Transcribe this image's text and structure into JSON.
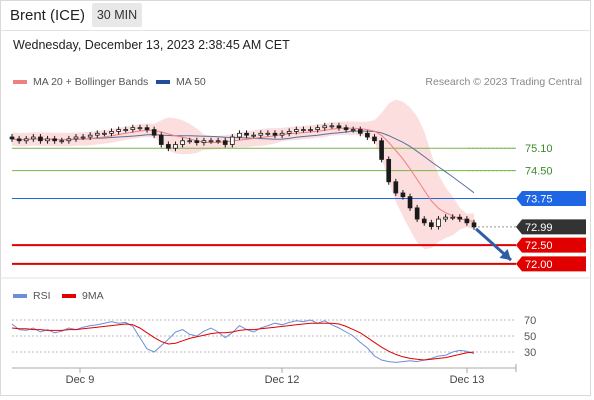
{
  "header": {
    "instrument": "Brent (ICE)",
    "timeframe": "30 MIN",
    "datetime": "Wednesday, December 13, 2023 2:38:45 AM CET"
  },
  "legend": {
    "items": [
      {
        "label": "MA 20 + Bollinger Bands",
        "color": "#f08080"
      },
      {
        "label": "MA 50",
        "color": "#1f4e9c"
      }
    ],
    "credit": "Research © 2023 Trading Central"
  },
  "rsi_legend": {
    "items": [
      {
        "label": "RSI",
        "color": "#6b8ed6"
      },
      {
        "label": "9MA",
        "color": "#e00000"
      }
    ]
  },
  "colors": {
    "price": "#1a1a1a",
    "bollinger_fill": "#fbd8d8",
    "ma20": "#f08080",
    "ma50": "#5b6f9e",
    "level_green": "#7ab648",
    "level_blue": "#1f66e5",
    "level_red": "#e00000",
    "current_tag": "#333333",
    "arrow": "#2e5ea8",
    "rsi": "#6b8ed6",
    "rsi_ma": "#e00000"
  },
  "chart_data": [
    {
      "type": "line",
      "title": "",
      "x_ticks": [
        "Dec 9",
        "Dec 12",
        "Dec 13"
      ],
      "ylim": [
        71.7,
        76.5
      ],
      "series": [
        {
          "name": "Price",
          "values": [
            75.35,
            75.3,
            75.35,
            75.4,
            75.3,
            75.35,
            75.3,
            75.3,
            75.35,
            75.4,
            75.4,
            75.45,
            75.5,
            75.5,
            75.55,
            75.6,
            75.6,
            75.65,
            75.65,
            75.6,
            75.45,
            75.2,
            75.1,
            75.2,
            75.3,
            75.3,
            75.25,
            75.3,
            75.3,
            75.3,
            75.2,
            75.4,
            75.5,
            75.45,
            75.45,
            75.5,
            75.5,
            75.45,
            75.5,
            75.55,
            75.6,
            75.6,
            75.6,
            75.65,
            75.7,
            75.7,
            75.65,
            75.6,
            75.6,
            75.5,
            75.4,
            75.3,
            74.8,
            74.2,
            73.9,
            73.8,
            73.5,
            73.2,
            73.1,
            73.0,
            73.2,
            73.25,
            73.25,
            73.2,
            73.1,
            72.99
          ]
        }
      ],
      "levels": [
        {
          "label": "75.10",
          "value": 75.1,
          "kind": "resistance"
        },
        {
          "label": "74.50",
          "value": 74.5,
          "kind": "resistance"
        },
        {
          "label": "73.75",
          "value": 73.75,
          "kind": "pivot"
        },
        {
          "label": "72.99",
          "value": 72.99,
          "kind": "current"
        },
        {
          "label": "72.50",
          "value": 72.5,
          "kind": "support"
        },
        {
          "label": "72.00",
          "value": 72.0,
          "kind": "support"
        }
      ],
      "indicators": [
        "MA 20 + Bollinger Bands",
        "MA 50"
      ]
    },
    {
      "type": "line",
      "title": "",
      "ylim": [
        15,
        80
      ],
      "y_ticks": [
        "70",
        "50",
        "30"
      ],
      "series": [
        {
          "name": "RSI",
          "values": [
            65,
            58,
            57,
            60,
            55,
            58,
            54,
            56,
            60,
            58,
            61,
            63,
            64,
            66,
            68,
            66,
            67,
            62,
            48,
            34,
            30,
            38,
            46,
            55,
            58,
            52,
            50,
            56,
            60,
            55,
            48,
            54,
            63,
            58,
            55,
            60,
            63,
            66,
            64,
            67,
            69,
            68,
            70,
            66,
            69,
            64,
            60,
            55,
            50,
            42,
            35,
            25,
            20,
            18,
            17,
            18,
            19,
            18,
            20,
            22,
            25,
            26,
            30,
            32,
            31,
            28
          ]
        },
        {
          "name": "9MA",
          "values": [
            60,
            59,
            59,
            58,
            58,
            57,
            57,
            57,
            58,
            58,
            59,
            60,
            61,
            62,
            63,
            64,
            65,
            64,
            60,
            54,
            48,
            43,
            40,
            41,
            44,
            47,
            49,
            51,
            53,
            54,
            54,
            55,
            57,
            58,
            58,
            59,
            60,
            61,
            62,
            63,
            64,
            65,
            66,
            66,
            66,
            66,
            65,
            62,
            58,
            54,
            48,
            42,
            36,
            31,
            27,
            24,
            22,
            21,
            20,
            21,
            22,
            23,
            25,
            27,
            29,
            30
          ]
        }
      ]
    }
  ]
}
